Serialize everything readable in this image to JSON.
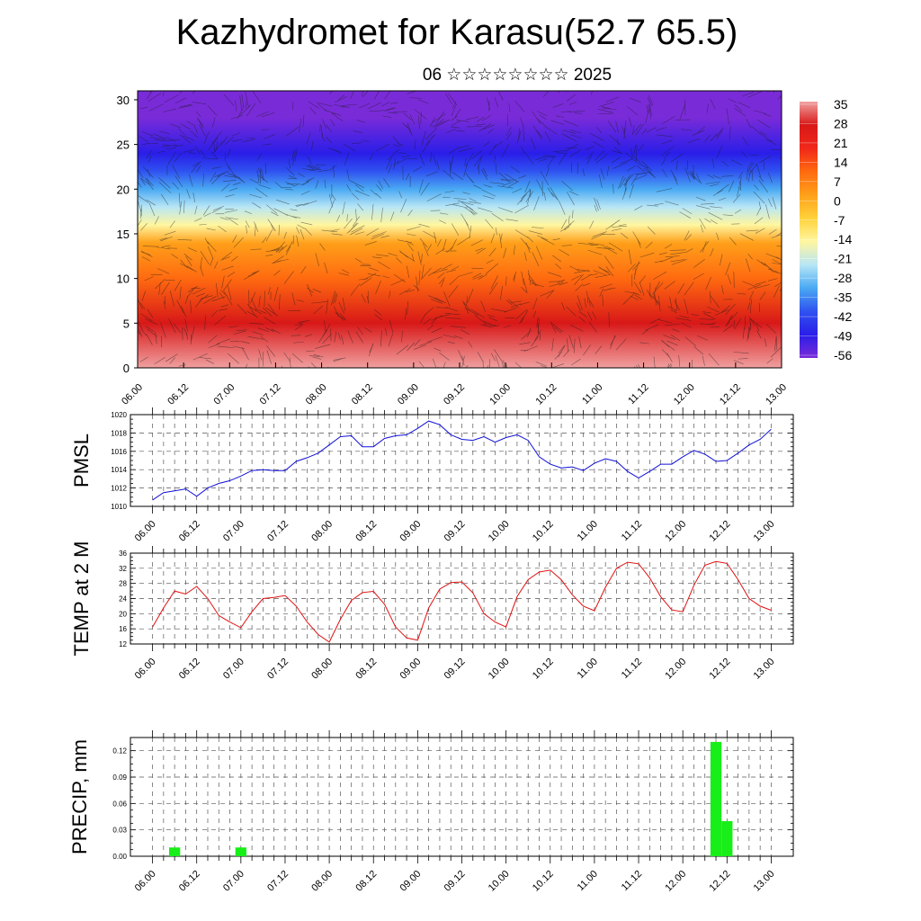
{
  "title": "Kazhydromet for Karasu(52.7 65.5)",
  "subtitle": "06 ☆☆☆☆☆☆☆☆ 2025",
  "time_labels": [
    "06.00",
    "06.12",
    "07.00",
    "07.12",
    "08.00",
    "08.12",
    "09.00",
    "09.12",
    "10.00",
    "10.12",
    "11.00",
    "11.12",
    "12.00",
    "12.12",
    "13.00"
  ],
  "chart_data": [
    {
      "type": "heatmap",
      "name_hint": "upper",
      "y_ticks": [
        "0",
        "5",
        "10",
        "15",
        "20",
        "25",
        "30"
      ],
      "ylim": [
        0,
        31
      ],
      "colorbar_labels": [
        "35",
        "28",
        "21",
        "14",
        "7",
        "0",
        "-7",
        "-14",
        "-21",
        "-28",
        "-35",
        "-42",
        "-49",
        "-56"
      ],
      "colorbar_range": [
        -60,
        38
      ],
      "colormap": [
        "#7a2bd8",
        "#2a1ee8",
        "#2f52f0",
        "#4aa9f3",
        "#b8e6f5",
        "#fff6a0",
        "#ffd23a",
        "#ffa01a",
        "#ff6a10",
        "#f0281a",
        "#d81818",
        "#f0a0a0"
      ],
      "level_temps": [
        {
          "level": 0,
          "t": 34
        },
        {
          "level": 5,
          "t": 28
        },
        {
          "level": 10,
          "t": 14
        },
        {
          "level": 14,
          "t": -2
        },
        {
          "level": 16,
          "t": -12
        },
        {
          "level": 18,
          "t": -24
        },
        {
          "level": 20,
          "t": -34
        },
        {
          "level": 22,
          "t": -46
        },
        {
          "level": 24,
          "t": -52
        },
        {
          "level": 28,
          "t": -56
        },
        {
          "level": 31,
          "t": -60
        }
      ]
    },
    {
      "type": "line",
      "ylabel": "PMSL",
      "y_ticks": [
        "1010",
        "1012",
        "1014",
        "1016",
        "1018",
        "1020"
      ],
      "ylim": [
        1010,
        1020
      ],
      "color": "#1010d8",
      "x": [
        0,
        0.25,
        0.5,
        0.75,
        1,
        1.25,
        1.5,
        1.75,
        2,
        2.25,
        2.5,
        2.75,
        3,
        3.25,
        3.5,
        3.75,
        4,
        4.25,
        4.5,
        4.75,
        5,
        5.25,
        5.5,
        5.75,
        6,
        6.25,
        6.5,
        6.75,
        7,
        7.25,
        7.5,
        7.75,
        8,
        8.25,
        8.5,
        8.75,
        9,
        9.25,
        9.5,
        9.75,
        10,
        10.25,
        10.5,
        10.75,
        11,
        11.25,
        11.5,
        11.75,
        12,
        12.25,
        12.5,
        12.75,
        13,
        13.25,
        13.5,
        13.75,
        14
      ],
      "values": [
        1010.7,
        1011.5,
        1011.7,
        1011.9,
        1011.1,
        1012.0,
        1012.5,
        1012.8,
        1013.3,
        1013.9,
        1014.0,
        1013.9,
        1013.9,
        1014.9,
        1015.3,
        1015.8,
        1016.7,
        1017.6,
        1017.7,
        1016.5,
        1016.5,
        1017.4,
        1017.7,
        1017.8,
        1018.5,
        1019.3,
        1018.9,
        1017.8,
        1017.3,
        1017.2,
        1017.6,
        1017.0,
        1017.5,
        1017.8,
        1017.2,
        1015.4,
        1014.6,
        1014.2,
        1014.3,
        1013.9,
        1014.7,
        1015.2,
        1014.9,
        1013.8,
        1013.1,
        1013.8,
        1014.6,
        1014.6,
        1015.4,
        1016.1,
        1015.7,
        1014.9,
        1015.0,
        1015.8,
        1016.7,
        1017.3,
        1018.4
      ]
    },
    {
      "type": "line",
      "ylabel": "TEMP at 2 M",
      "y_ticks": [
        "12",
        "16",
        "20",
        "24",
        "28",
        "32",
        "36"
      ],
      "ylim": [
        12,
        36
      ],
      "color": "#e01010",
      "x": [
        0,
        0.25,
        0.5,
        0.75,
        1,
        1.25,
        1.5,
        1.75,
        2,
        2.25,
        2.5,
        2.75,
        3,
        3.25,
        3.5,
        3.75,
        4,
        4.25,
        4.5,
        4.75,
        5,
        5.25,
        5.5,
        5.75,
        6,
        6.25,
        6.5,
        6.75,
        7,
        7.25,
        7.5,
        7.75,
        8,
        8.25,
        8.5,
        8.75,
        9,
        9.25,
        9.5,
        9.75,
        10,
        10.25,
        10.5,
        10.75,
        11,
        11.25,
        11.5,
        11.75,
        12,
        12.25,
        12.5,
        12.75,
        13,
        13.25,
        13.5,
        13.75,
        14
      ],
      "values": [
        16.5,
        21.5,
        26.0,
        25.2,
        27.2,
        24.0,
        19.5,
        17.8,
        16.3,
        20.5,
        24.0,
        24.3,
        24.8,
        22.0,
        17.8,
        14.5,
        12.5,
        18.5,
        23.5,
        25.6,
        25.9,
        22.5,
        16.5,
        13.6,
        13.0,
        21.5,
        26.5,
        28.2,
        28.4,
        25.5,
        20.0,
        17.8,
        16.5,
        24.5,
        29.0,
        31.0,
        31.5,
        29.0,
        25.0,
        22.0,
        20.8,
        27.0,
        32.0,
        33.6,
        33.2,
        29.5,
        24.5,
        21.0,
        20.5,
        27.5,
        32.8,
        33.8,
        33.3,
        29.0,
        24.0,
        22.0,
        20.9
      ]
    },
    {
      "type": "bar",
      "ylabel": "PRECIP, mm",
      "y_ticks": [
        "0.00",
        "0.03",
        "0.06",
        "0.09",
        "0.12"
      ],
      "ylim": [
        0,
        0.135
      ],
      "color": "#18ee18",
      "x": [
        0.5,
        2.0,
        12.75,
        13.0
      ],
      "values": [
        0.01,
        0.01,
        0.13,
        0.04
      ]
    }
  ]
}
